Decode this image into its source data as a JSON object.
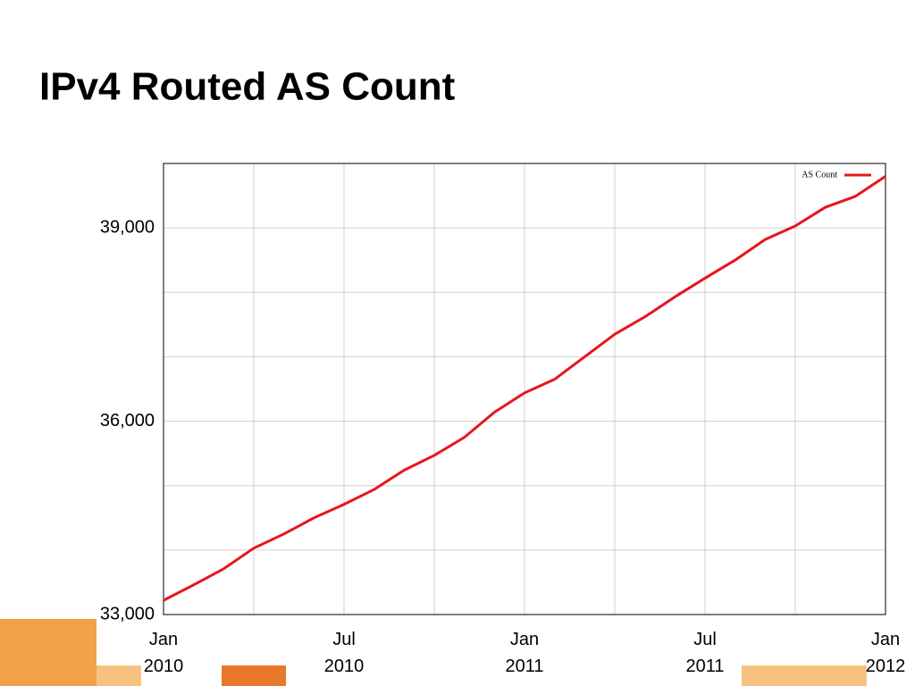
{
  "chart_data": {
    "type": "line",
    "title": "IPv4 Routed AS Count",
    "x": [
      "2010-01",
      "2010-02",
      "2010-03",
      "2010-04",
      "2010-05",
      "2010-06",
      "2010-07",
      "2010-08",
      "2010-09",
      "2010-10",
      "2010-11",
      "2010-12",
      "2011-01",
      "2011-02",
      "2011-03",
      "2011-04",
      "2011-05",
      "2011-06",
      "2011-07",
      "2011-08",
      "2011-09",
      "2011-10",
      "2011-11",
      "2011-12",
      "2012-01"
    ],
    "series": [
      {
        "name": "AS Count",
        "color": "#e8141b",
        "values": [
          33220,
          33460,
          33710,
          34030,
          34250,
          34500,
          34710,
          34940,
          35240,
          35470,
          35750,
          36140,
          36440,
          36650,
          37000,
          37350,
          37620,
          37930,
          38220,
          38500,
          38820,
          39030,
          39320,
          39490,
          39800
        ]
      }
    ],
    "xlim": [
      "2010-01",
      "2012-01"
    ],
    "xticks": [
      {
        "value": "2010-01",
        "label": "Jan 2010"
      },
      {
        "value": "2010-07",
        "label": "Jul 2010"
      },
      {
        "value": "2011-01",
        "label": "Jan 2011"
      },
      {
        "value": "2011-07",
        "label": "Jul 2011"
      },
      {
        "value": "2012-01",
        "label": "Jan 2012"
      }
    ],
    "xminor_ticks": [
      "2010-04",
      "2010-10",
      "2011-04",
      "2011-10"
    ],
    "ylim": [
      33000,
      40000
    ],
    "yticks": [
      {
        "value": 33000,
        "label": "33,000"
      },
      {
        "value": 36000,
        "label": "36,000"
      },
      {
        "value": 39000,
        "label": "39,000"
      }
    ],
    "yminor_ticks": [
      34000,
      35000,
      37000,
      38000,
      40000
    ],
    "grid": true,
    "legend": "upper right"
  }
}
